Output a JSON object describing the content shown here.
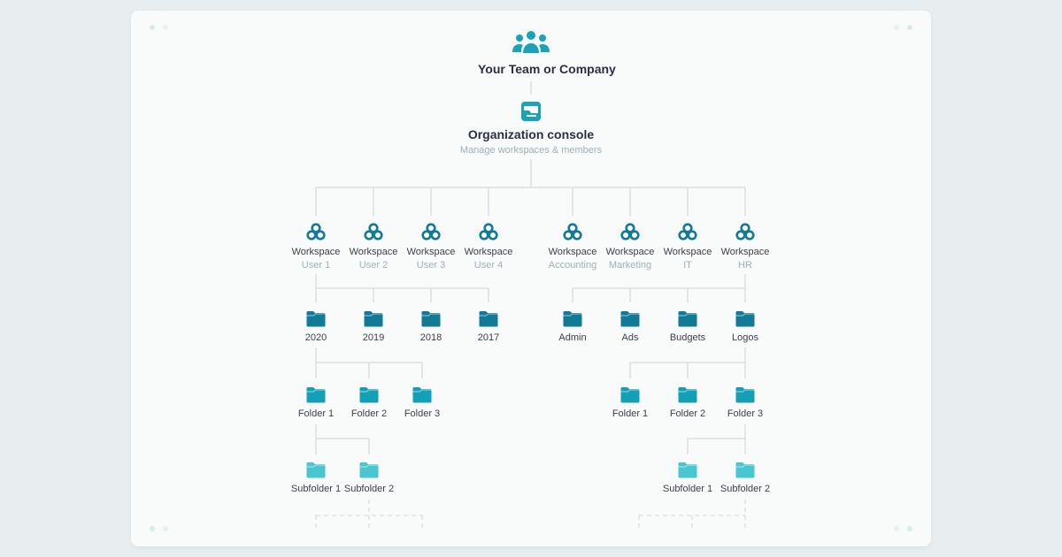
{
  "root": {
    "title": "Your Team or Company",
    "icon": "users-icon"
  },
  "console": {
    "title": "Organization console",
    "subtitle": "Manage workspaces & members",
    "icon": "console-icon"
  },
  "workspaces": [
    {
      "label": "Workspace",
      "sub": "User 1"
    },
    {
      "label": "Workspace",
      "sub": "User 2"
    },
    {
      "label": "Workspace",
      "sub": "User 3"
    },
    {
      "label": "Workspace",
      "sub": "User 4"
    },
    {
      "label": "Workspace",
      "sub": "Accounting"
    },
    {
      "label": "Workspace",
      "sub": "Marketing"
    },
    {
      "label": "Workspace",
      "sub": "IT"
    },
    {
      "label": "Workspace",
      "sub": "HR"
    }
  ],
  "folders_l1": [
    "2020",
    "2019",
    "2018",
    "2017",
    "Admin",
    "Ads",
    "Budgets",
    "Logos"
  ],
  "folders_l2_left": [
    "Folder 1",
    "Folder 2",
    "Folder 3"
  ],
  "folders_l2_right": [
    "Folder 1",
    "Folder 2",
    "Folder 3"
  ],
  "subfolders_left": [
    "Subfolder 1",
    "Subfolder 2"
  ],
  "subfolders_right": [
    "Subfolder 1",
    "Subfolder 2"
  ],
  "colors": {
    "accent": "#1aa3b8",
    "workspace": "#137a94",
    "folder_l1": "#117a96",
    "folder_l2": "#13a0b6",
    "subfolder": "#48c7d3",
    "line": "#d9dfe3"
  }
}
